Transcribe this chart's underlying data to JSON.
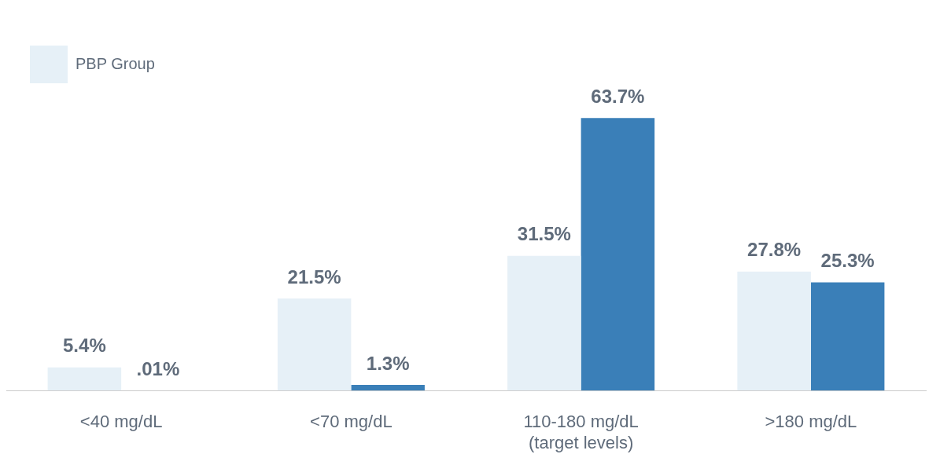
{
  "chart_data": {
    "type": "bar",
    "categories": [
      "<40 mg/dL",
      "<70 mg/dL",
      "110-180 mg/dL\n(target levels)",
      ">180 mg/dL"
    ],
    "series": [
      {
        "name": "PBP Group",
        "color": "#e6f0f7",
        "values": [
          5.4,
          21.5,
          31.5,
          27.8
        ],
        "value_labels": [
          "5.4%",
          "21.5%",
          "31.5%",
          "27.8%"
        ]
      },
      {
        "color": "#3a7fb8",
        "values": [
          0.01,
          1.3,
          63.7,
          25.3
        ],
        "value_labels": [
          ".01%",
          "1.3%",
          "63.7%",
          "25.3%"
        ]
      }
    ],
    "legend": "top left",
    "grid": false
  }
}
